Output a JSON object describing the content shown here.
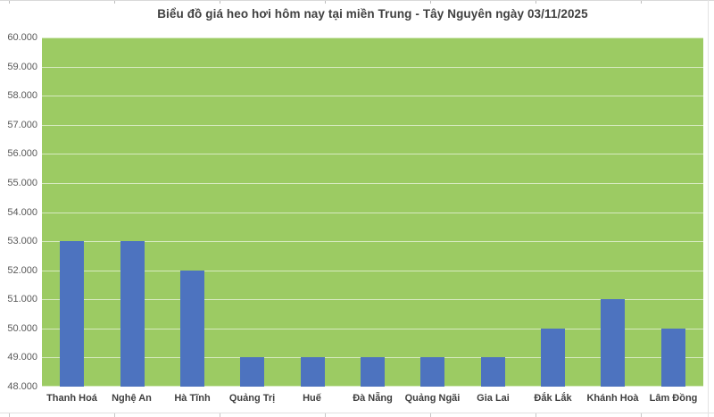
{
  "chart_data": {
    "type": "bar",
    "title": "Biểu đồ giá heo hơi hôm nay tại miền Trung - Tây Nguyên ngày 03/11/2025",
    "categories": [
      "Thanh Hoá",
      "Nghệ An",
      "Hà Tĩnh",
      "Quảng Trị",
      "Huế",
      "Đà Nẵng",
      "Quảng Ngãi",
      "Gia Lai",
      "Đắk Lắk",
      "Khánh Hoà",
      "Lâm Đồng"
    ],
    "values": [
      53000,
      53000,
      52000,
      49000,
      49000,
      49000,
      49000,
      49000,
      50000,
      51000,
      50000
    ],
    "xlabel": "",
    "ylabel": "",
    "ylim": [
      48000,
      60000
    ],
    "ytick_interval": 1000,
    "ytick_labels": [
      "60.000",
      "59.000",
      "58.000",
      "57.000",
      "56.000",
      "55.000",
      "54.000",
      "53.000",
      "52.000",
      "51.000",
      "50.000",
      "49.000",
      "48.000"
    ],
    "grid": true,
    "legend_position": "none",
    "colors": {
      "bar": "#4d73bf",
      "plot_background": "#9ccb63",
      "gridline": "rgba(255,255,255,0.6)",
      "title_text": "#404040",
      "ytick_text": "#595959",
      "xtick_text": "#3f3f3f"
    }
  }
}
